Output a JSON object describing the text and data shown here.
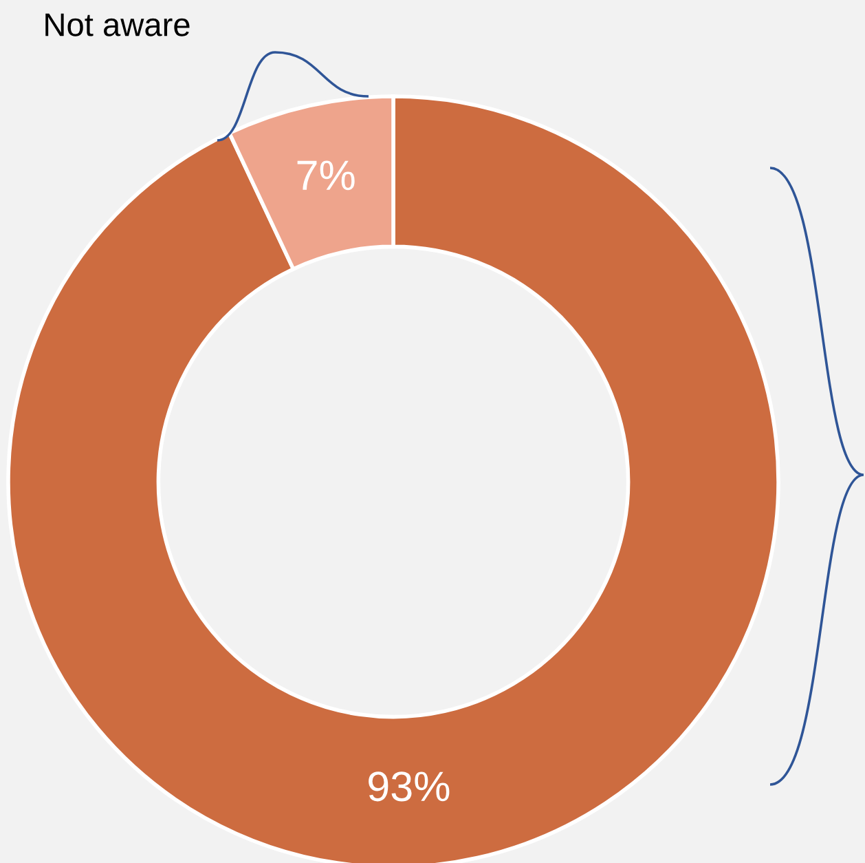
{
  "chart_data": {
    "type": "donut",
    "categories": [
      null,
      "Not aware"
    ],
    "values": [
      93,
      7
    ],
    "colors": [
      "#cd6c40",
      "#eea48c"
    ],
    "value_labels": [
      "93%",
      "7%"
    ]
  }
}
